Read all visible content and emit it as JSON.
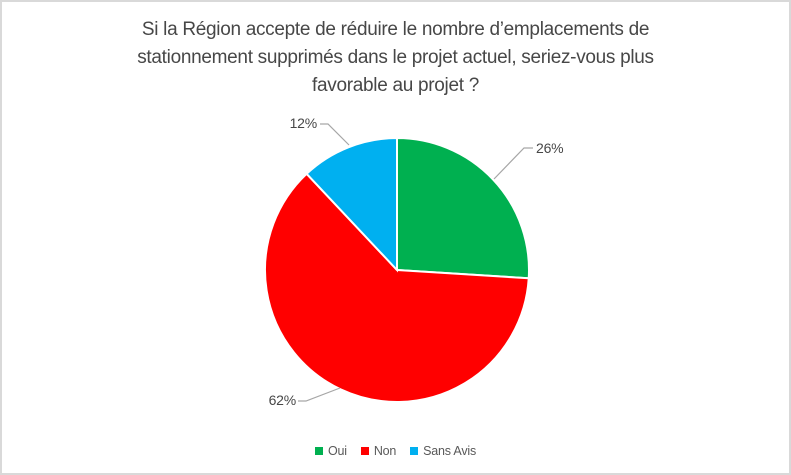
{
  "window": {
    "background": "#FFFFFF",
    "border_color": "#D9D9D9"
  },
  "chart_data": {
    "type": "pie",
    "title": "Si la Région accepte de réduire le nombre d’emplacements de stationnement supprimés dans le projet actuel, seriez-vous plus favorable au projet ?",
    "title_lines": [
      "Si la Région accepte de réduire le nombre d’emplacements de",
      "stationnement supprimés dans le projet actuel, seriez-vous plus",
      "favorable au projet ?"
    ],
    "categories": [
      "Oui",
      "Non",
      "Sans Avis"
    ],
    "values": [
      26,
      62,
      12
    ],
    "labels": [
      "26%",
      "62%",
      "12%"
    ],
    "colors": [
      "#00B050",
      "#FF0000",
      "#00B0F0"
    ],
    "start_angle_deg": 0,
    "direction": "clockwise",
    "legend_position": "bottom",
    "leader_line_color": "#A6A6A6",
    "label_color": "#474747",
    "title_color": "#474747",
    "legend_text_color": "#595959"
  }
}
